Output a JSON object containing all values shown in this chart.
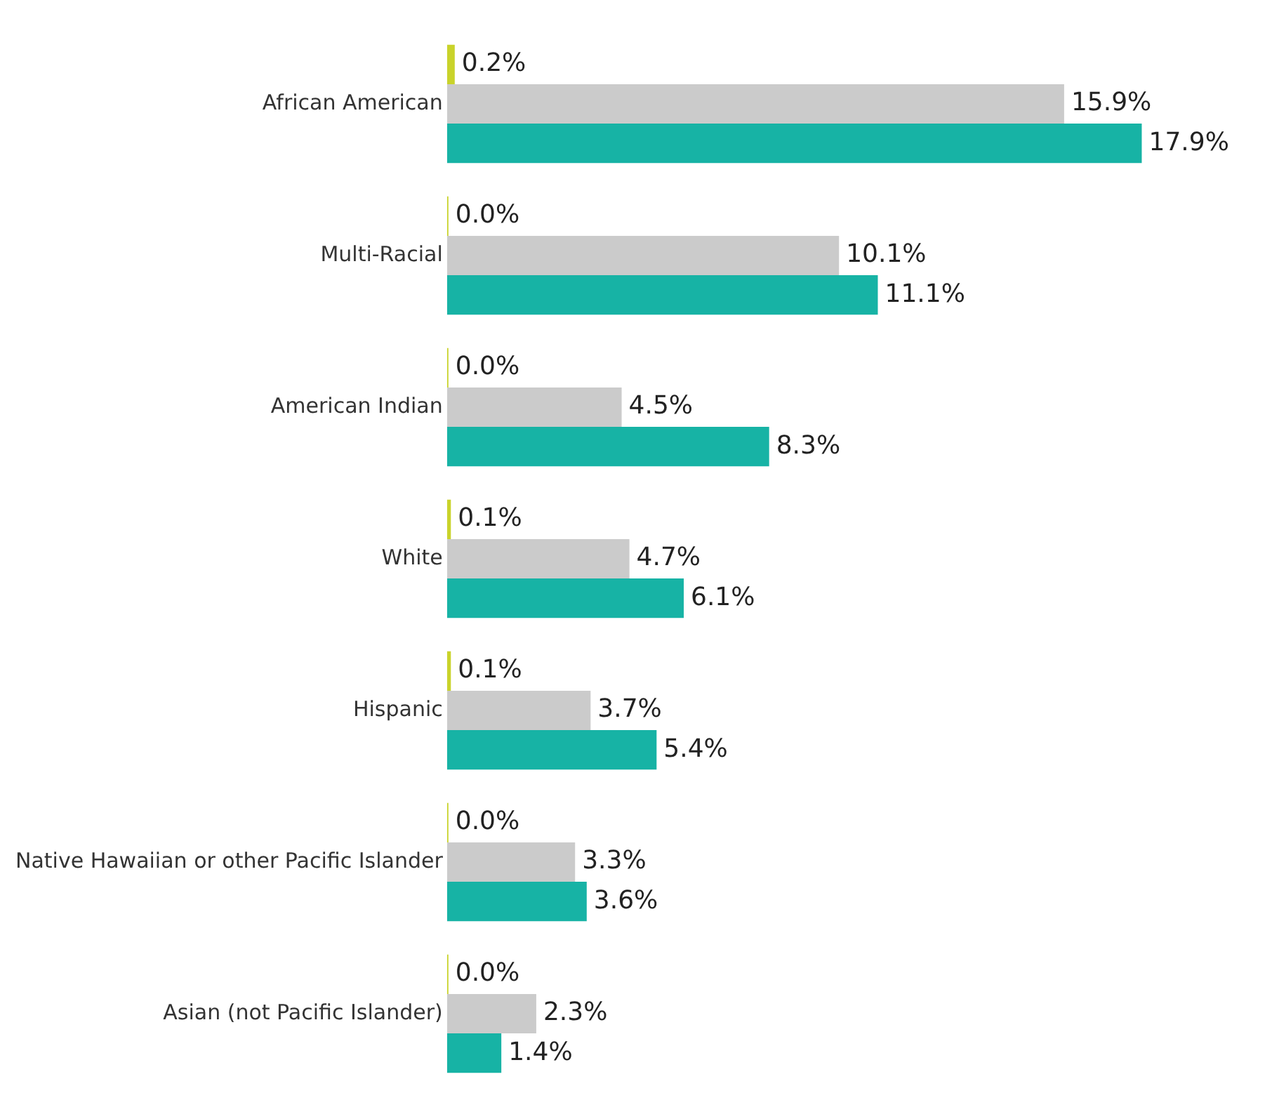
{
  "chart_data": {
    "type": "bar",
    "orientation": "horizontal",
    "tick_labels": "y",
    "categories": [
      "African American",
      "Multi-Racial",
      "American Indian",
      "White",
      "Hispanic",
      "Native Hawaiian or other Pacific Islander",
      "Asian (not Pacific Islander)"
    ],
    "series": [
      {
        "color": "#c9d32b",
        "values": [
          0.2,
          0.0,
          0.0,
          0.1,
          0.1,
          0.0,
          0.0
        ],
        "value_labels": [
          "0.2%",
          "0.0%",
          "0.0%",
          "0.1%",
          "0.1%",
          "0.0%",
          "0.0%"
        ]
      },
      {
        "color": "#cbcbcb",
        "values": [
          15.9,
          10.1,
          4.5,
          4.7,
          3.7,
          3.3,
          2.3
        ],
        "value_labels": [
          "15.9%",
          "10.1%",
          "4.5%",
          "4.7%",
          "3.7%",
          "3.3%",
          "2.3%"
        ]
      },
      {
        "color": "#17b3a5",
        "values": [
          17.9,
          11.1,
          8.3,
          6.1,
          5.4,
          3.6,
          1.4
        ],
        "value_labels": [
          "17.9%",
          "11.1%",
          "8.3%",
          "6.1%",
          "5.4%",
          "3.6%",
          "1.4%"
        ]
      }
    ]
  }
}
